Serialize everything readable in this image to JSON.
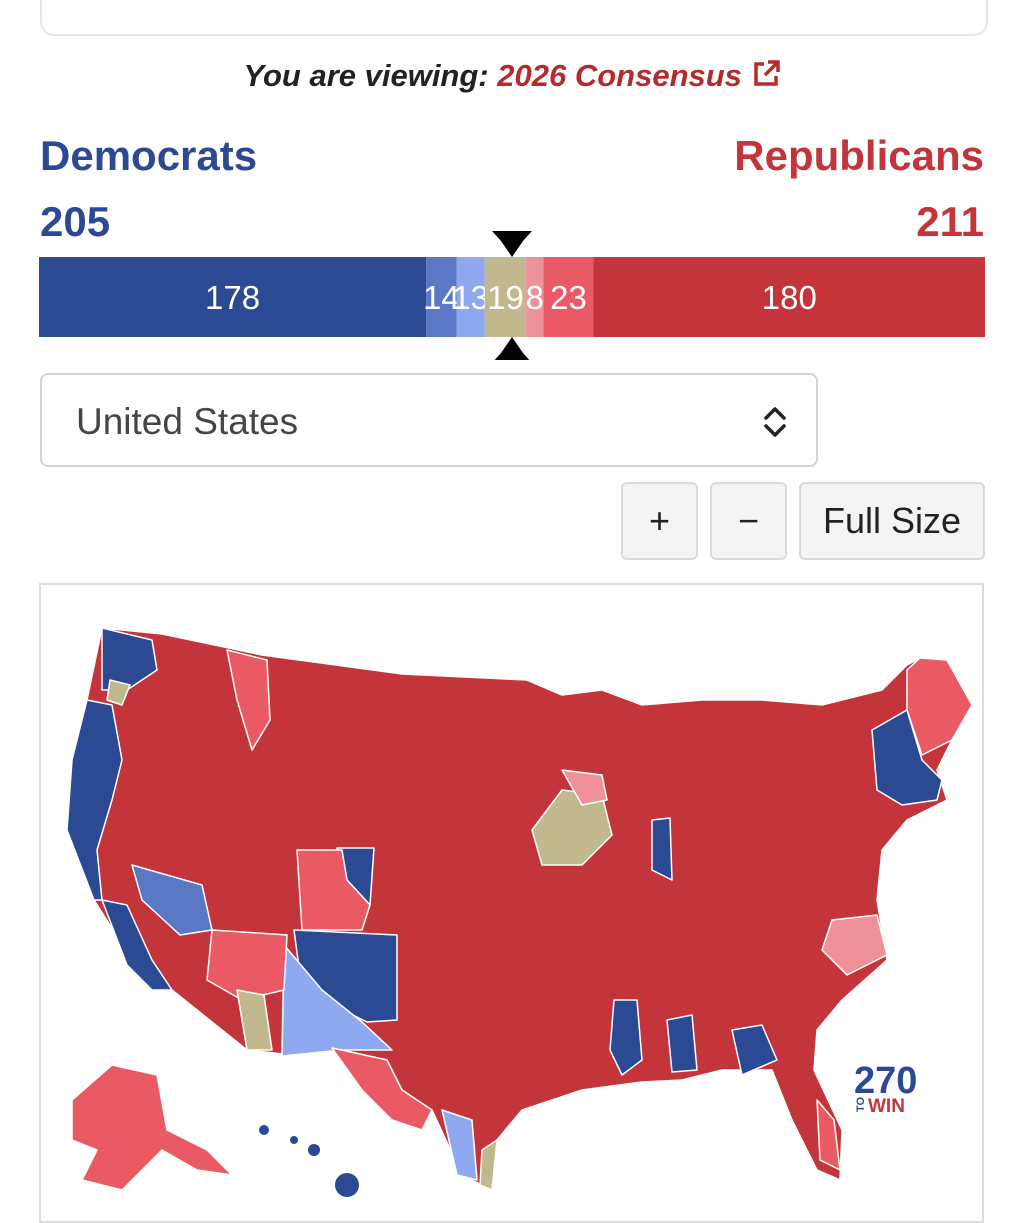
{
  "header": {
    "prefix": "You are viewing:",
    "map_name": "2026 Consensus"
  },
  "parties": {
    "democrats": {
      "name": "Democrats",
      "total": 205
    },
    "republicans": {
      "name": "Republicans",
      "total": 211
    }
  },
  "seat_bar": {
    "segments": [
      {
        "value": 178,
        "color": "#2c4a94"
      },
      {
        "value": 14,
        "color": "#5b78c4"
      },
      {
        "value": 13,
        "color": "#8fa9f0"
      },
      {
        "value": 19,
        "color": "#c2b88e"
      },
      {
        "value": 8,
        "color": "#ef9199"
      },
      {
        "value": 23,
        "color": "#ea5a64"
      },
      {
        "value": 180,
        "color": "#c3353a"
      }
    ]
  },
  "selector": {
    "label": "United States"
  },
  "buttons": [
    {
      "label": "+"
    },
    {
      "label": "−"
    },
    {
      "label": "Full Size"
    }
  ],
  "logo": {
    "number": "270",
    "small": "TO",
    "word": "WIN"
  }
}
